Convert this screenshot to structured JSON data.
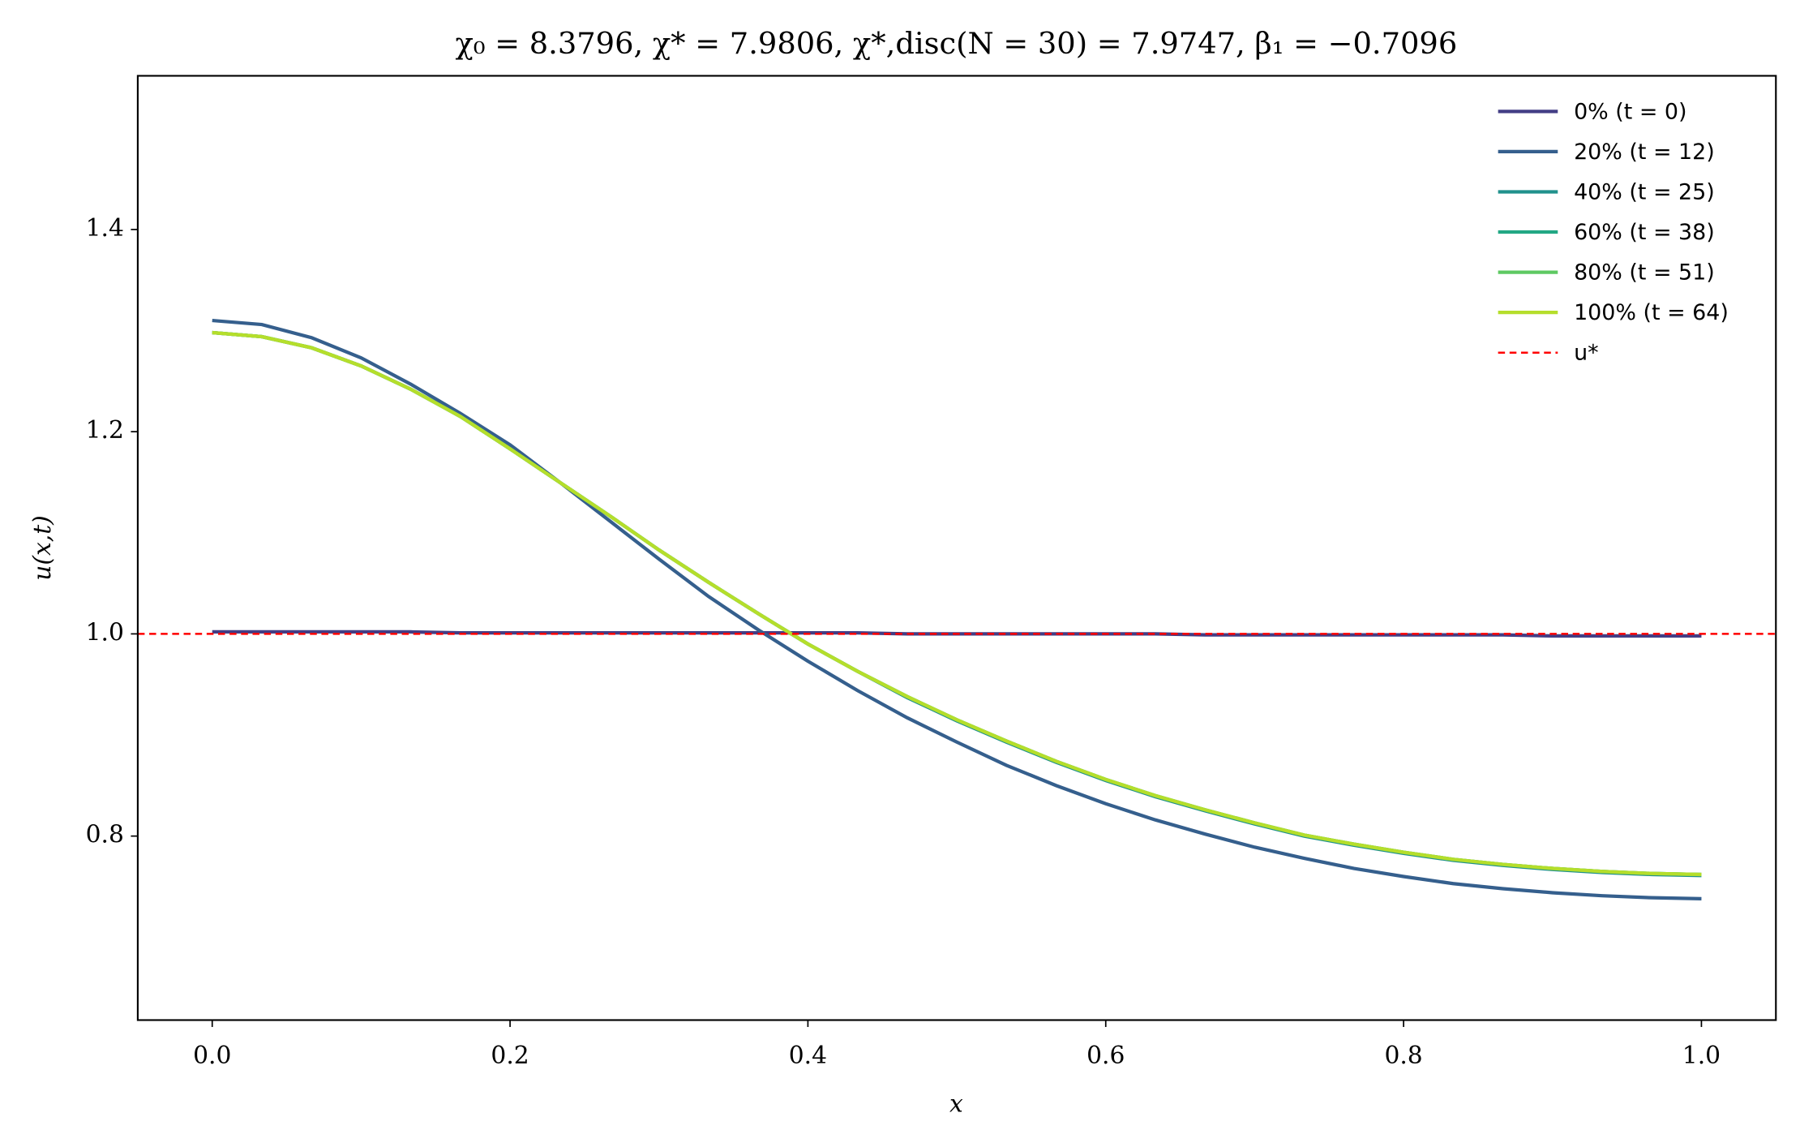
{
  "chart_data": {
    "type": "line",
    "title": "χ₀ = 8.3796,  χ* = 7.9806,  χ*,disc(N = 30) = 7.9747,  β₁ = −0.7096",
    "xlabel": "x",
    "ylabel": "u(x,t)",
    "x": [
      0,
      0.0333,
      0.0667,
      0.1,
      0.1333,
      0.1667,
      0.2,
      0.2333,
      0.2667,
      0.3,
      0.3333,
      0.3667,
      0.4,
      0.4333,
      0.4667,
      0.5,
      0.5333,
      0.5667,
      0.6,
      0.6333,
      0.6667,
      0.7,
      0.7333,
      0.7667,
      0.8,
      0.8333,
      0.8667,
      0.9,
      0.9333,
      0.9667,
      1
    ],
    "series": [
      {
        "name": "0% (t = 0)",
        "color": "#433e85",
        "values": [
          1.002,
          1.002,
          1.002,
          1.002,
          1.002,
          1.001,
          1.001,
          1.001,
          1.001,
          1.001,
          1.001,
          1.001,
          1.001,
          1.001,
          1.0,
          1.0,
          1.0,
          1.0,
          1.0,
          1.0,
          0.999,
          0.999,
          0.999,
          0.999,
          0.999,
          0.999,
          0.999,
          0.998,
          0.998,
          0.998,
          0.998
        ]
      },
      {
        "name": "20% (t = 12)",
        "color": "#355f8d",
        "values": [
          1.31,
          1.306,
          1.293,
          1.273,
          1.247,
          1.218,
          1.187,
          1.15,
          1.112,
          1.074,
          1.037,
          1.004,
          0.973,
          0.944,
          0.917,
          0.893,
          0.87,
          0.85,
          0.832,
          0.816,
          0.802,
          0.789,
          0.778,
          0.768,
          0.76,
          0.753,
          0.748,
          0.744,
          0.741,
          0.739,
          0.738
        ]
      },
      {
        "name": "40% (t = 25)",
        "color": "#21918c",
        "values": [
          1.298,
          1.294,
          1.283,
          1.265,
          1.242,
          1.215,
          1.183,
          1.15,
          1.117,
          1.083,
          1.051,
          1.02,
          0.99,
          0.963,
          0.937,
          0.914,
          0.893,
          0.873,
          0.855,
          0.839,
          0.825,
          0.812,
          0.8,
          0.791,
          0.783,
          0.776,
          0.771,
          0.767,
          0.764,
          0.762,
          0.761
        ]
      },
      {
        "name": "60% (t = 38)",
        "color": "#22a884",
        "values": [
          1.298,
          1.294,
          1.283,
          1.265,
          1.242,
          1.215,
          1.183,
          1.15,
          1.117,
          1.083,
          1.051,
          1.02,
          0.99,
          0.963,
          0.938,
          0.915,
          0.894,
          0.874,
          0.856,
          0.84,
          0.826,
          0.813,
          0.801,
          0.792,
          0.784,
          0.777,
          0.772,
          0.768,
          0.765,
          0.763,
          0.762
        ]
      },
      {
        "name": "80% (t = 51)",
        "color": "#5ec962",
        "values": [
          1.298,
          1.294,
          1.283,
          1.265,
          1.242,
          1.215,
          1.183,
          1.15,
          1.117,
          1.083,
          1.051,
          1.02,
          0.99,
          0.963,
          0.938,
          0.915,
          0.894,
          0.874,
          0.856,
          0.84,
          0.826,
          0.813,
          0.801,
          0.792,
          0.784,
          0.777,
          0.772,
          0.768,
          0.765,
          0.763,
          0.762
        ]
      },
      {
        "name": "100% (t = 64)",
        "color": "#b5de2b",
        "values": [
          1.298,
          1.294,
          1.283,
          1.265,
          1.242,
          1.215,
          1.183,
          1.15,
          1.117,
          1.083,
          1.051,
          1.02,
          0.99,
          0.963,
          0.938,
          0.915,
          0.894,
          0.874,
          0.856,
          0.84,
          0.826,
          0.813,
          0.801,
          0.792,
          0.784,
          0.777,
          0.772,
          0.768,
          0.765,
          0.763,
          0.762
        ]
      }
    ],
    "hlines": [
      {
        "name": "u*",
        "value": 1.0,
        "color": "#ff0000"
      }
    ],
    "xlim": [
      -0.05,
      1.05
    ],
    "ylim": [
      0.618,
      1.552
    ],
    "xticks": [
      {
        "value": 0,
        "label": "0.0"
      },
      0.2,
      0.4,
      0.6,
      0.8,
      {
        "value": 1,
        "label": "1.0"
      }
    ],
    "yticks": [
      0.8,
      {
        "value": 1,
        "label": "1.0"
      },
      1.2,
      1.4
    ],
    "grid": false,
    "legend": "upper right"
  }
}
